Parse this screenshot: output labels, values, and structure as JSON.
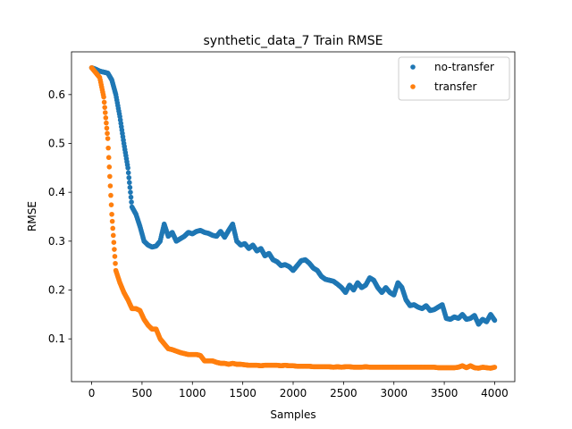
{
  "chart_data": {
    "type": "scatter",
    "title": "synthetic_data_7 Train RMSE",
    "xlabel": "Samples",
    "ylabel": "RMSE",
    "xlim": [
      -200,
      4200
    ],
    "ylim": [
      0.0125,
      0.6875
    ],
    "x_ticks": [
      0,
      500,
      1000,
      1500,
      2000,
      2500,
      3000,
      3500,
      4000
    ],
    "x_tick_labels": [
      "0",
      "500",
      "1000",
      "1500",
      "2000",
      "2500",
      "3000",
      "3500",
      "4000"
    ],
    "y_ticks": [
      0.1,
      0.2,
      0.3,
      0.4,
      0.5,
      0.6
    ],
    "y_tick_labels": [
      "0.1",
      "0.2",
      "0.3",
      "0.4",
      "0.5",
      "0.6"
    ],
    "grid": false,
    "legend_position": "top-right",
    "series": [
      {
        "name": "no-transfer",
        "color": "#1f77b4",
        "x": [
          0,
          40,
          80,
          120,
          160,
          200,
          240,
          280,
          320,
          360,
          400,
          440,
          480,
          520,
          560,
          600,
          640,
          680,
          720,
          760,
          800,
          840,
          880,
          920,
          960,
          1000,
          1040,
          1080,
          1120,
          1160,
          1200,
          1240,
          1280,
          1320,
          1360,
          1400,
          1440,
          1480,
          1520,
          1560,
          1600,
          1640,
          1680,
          1720,
          1760,
          1800,
          1840,
          1880,
          1920,
          1960,
          2000,
          2040,
          2080,
          2120,
          2160,
          2200,
          2240,
          2280,
          2320,
          2360,
          2400,
          2440,
          2480,
          2520,
          2560,
          2600,
          2640,
          2680,
          2720,
          2760,
          2800,
          2840,
          2880,
          2920,
          2960,
          3000,
          3040,
          3080,
          3120,
          3160,
          3200,
          3240,
          3280,
          3320,
          3360,
          3400,
          3440,
          3480,
          3520,
          3560,
          3600,
          3640,
          3680,
          3720,
          3760,
          3800,
          3840,
          3880,
          3920,
          3960,
          4000
        ],
        "y": [
          0.655,
          0.652,
          0.648,
          0.646,
          0.644,
          0.63,
          0.6,
          0.555,
          0.5,
          0.45,
          0.37,
          0.355,
          0.33,
          0.3,
          0.292,
          0.288,
          0.29,
          0.3,
          0.335,
          0.31,
          0.318,
          0.3,
          0.305,
          0.31,
          0.318,
          0.315,
          0.32,
          0.322,
          0.318,
          0.316,
          0.312,
          0.31,
          0.32,
          0.308,
          0.322,
          0.335,
          0.3,
          0.292,
          0.295,
          0.285,
          0.292,
          0.28,
          0.285,
          0.27,
          0.275,
          0.262,
          0.258,
          0.25,
          0.252,
          0.248,
          0.24,
          0.25,
          0.26,
          0.262,
          0.255,
          0.245,
          0.24,
          0.228,
          0.222,
          0.22,
          0.218,
          0.212,
          0.205,
          0.195,
          0.21,
          0.2,
          0.215,
          0.205,
          0.21,
          0.225,
          0.22,
          0.205,
          0.195,
          0.205,
          0.195,
          0.19,
          0.215,
          0.205,
          0.18,
          0.168,
          0.17,
          0.165,
          0.162,
          0.168,
          0.158,
          0.16,
          0.165,
          0.17,
          0.142,
          0.14,
          0.145,
          0.142,
          0.15,
          0.14,
          0.142,
          0.148,
          0.13,
          0.14,
          0.135,
          0.15,
          0.138
        ]
      },
      {
        "name": "transfer",
        "color": "#ff7f0e",
        "x": [
          0,
          40,
          80,
          120,
          160,
          200,
          240,
          280,
          320,
          360,
          400,
          440,
          480,
          520,
          560,
          600,
          640,
          680,
          720,
          760,
          800,
          840,
          880,
          920,
          960,
          1000,
          1040,
          1080,
          1120,
          1160,
          1200,
          1240,
          1280,
          1320,
          1360,
          1400,
          1440,
          1480,
          1520,
          1560,
          1600,
          1640,
          1680,
          1720,
          1760,
          1800,
          1840,
          1880,
          1920,
          1960,
          2000,
          2040,
          2080,
          2120,
          2160,
          2200,
          2240,
          2280,
          2320,
          2360,
          2400,
          2440,
          2480,
          2520,
          2560,
          2600,
          2640,
          2680,
          2720,
          2760,
          2800,
          2840,
          2880,
          2920,
          2960,
          3000,
          3040,
          3080,
          3120,
          3160,
          3200,
          3240,
          3280,
          3320,
          3360,
          3400,
          3440,
          3480,
          3520,
          3560,
          3600,
          3640,
          3680,
          3720,
          3760,
          3800,
          3840,
          3880,
          3920,
          3960,
          4000
        ],
        "y": [
          0.655,
          0.645,
          0.635,
          0.595,
          0.51,
          0.355,
          0.24,
          0.215,
          0.195,
          0.18,
          0.162,
          0.162,
          0.158,
          0.14,
          0.128,
          0.12,
          0.12,
          0.1,
          0.09,
          0.08,
          0.078,
          0.075,
          0.072,
          0.07,
          0.068,
          0.068,
          0.068,
          0.066,
          0.055,
          0.055,
          0.055,
          0.052,
          0.05,
          0.05,
          0.048,
          0.05,
          0.048,
          0.048,
          0.047,
          0.046,
          0.046,
          0.046,
          0.045,
          0.046,
          0.046,
          0.046,
          0.046,
          0.045,
          0.046,
          0.045,
          0.045,
          0.044,
          0.044,
          0.044,
          0.044,
          0.043,
          0.043,
          0.043,
          0.043,
          0.043,
          0.042,
          0.043,
          0.042,
          0.043,
          0.043,
          0.042,
          0.042,
          0.042,
          0.043,
          0.042,
          0.042,
          0.042,
          0.042,
          0.042,
          0.042,
          0.042,
          0.042,
          0.042,
          0.042,
          0.042,
          0.042,
          0.042,
          0.042,
          0.042,
          0.042,
          0.042,
          0.041,
          0.041,
          0.041,
          0.041,
          0.041,
          0.042,
          0.045,
          0.041,
          0.045,
          0.041,
          0.04,
          0.042,
          0.041,
          0.04,
          0.042
        ]
      }
    ]
  }
}
